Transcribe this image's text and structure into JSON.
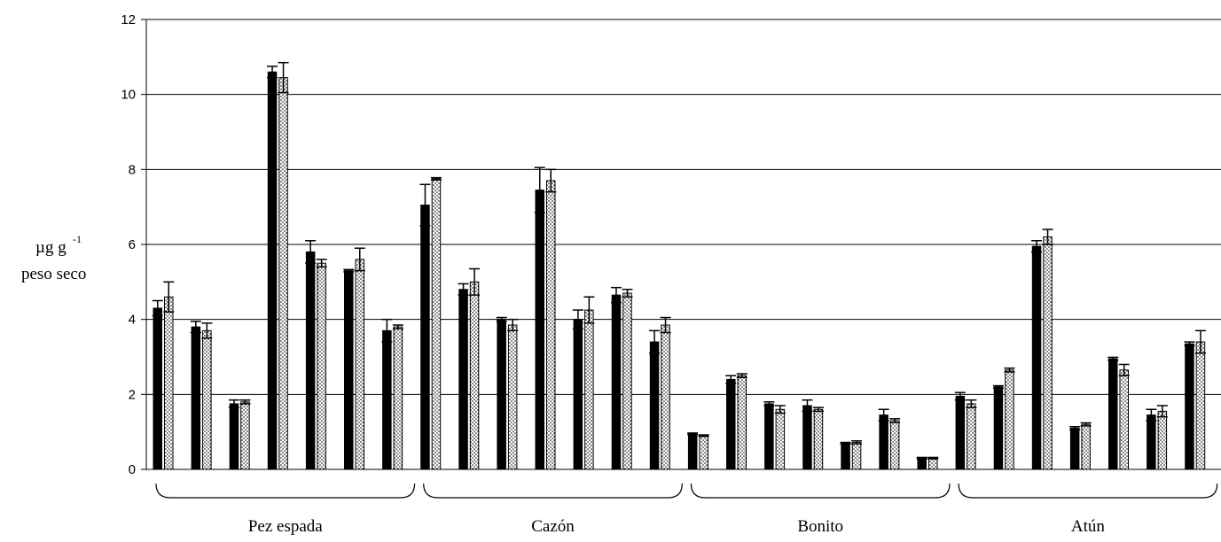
{
  "chart_data": {
    "type": "bar",
    "ylabel_main": "µg g",
    "ylabel_sup": "-1",
    "ylabel_line2": "peso seco",
    "ylim": [
      0,
      12
    ],
    "yticks": [
      "0",
      "2",
      "4",
      "6",
      "8",
      "10",
      "12"
    ],
    "grid": true,
    "groups": [
      {
        "label": "Pez espada",
        "samples": 7
      },
      {
        "label": "Cazón",
        "samples": 7
      },
      {
        "label": "Bonito",
        "samples": 7
      },
      {
        "label": "Atún",
        "samples": 7
      }
    ],
    "series": [
      {
        "values": [
          4.3,
          3.8,
          1.75,
          10.6,
          5.8,
          5.3,
          3.7,
          7.05,
          4.8,
          4.0,
          7.45,
          4.0,
          4.65,
          3.4,
          0.95,
          2.4,
          1.75,
          1.7,
          0.7,
          1.45,
          0.3,
          1.95,
          2.2,
          5.95,
          1.1,
          2.95,
          1.45,
          3.35
        ],
        "errors": [
          0.2,
          0.15,
          0.1,
          0.15,
          0.3,
          0.03,
          0.3,
          0.55,
          0.15,
          0.05,
          0.6,
          0.25,
          0.2,
          0.3,
          0.02,
          0.1,
          0.05,
          0.15,
          0.02,
          0.15,
          0.02,
          0.1,
          0.03,
          0.15,
          0.04,
          0.04,
          0.15,
          0.05
        ],
        "color": "#000000",
        "pattern": "solid"
      },
      {
        "values": [
          4.6,
          3.7,
          1.8,
          10.45,
          5.5,
          5.6,
          3.8,
          7.75,
          5.0,
          3.85,
          7.7,
          4.25,
          4.7,
          3.85,
          0.9,
          2.5,
          1.6,
          1.6,
          0.72,
          1.3,
          0.3,
          1.75,
          2.65,
          6.2,
          1.2,
          2.65,
          1.55,
          3.4
        ],
        "errors": [
          0.4,
          0.2,
          0.05,
          0.4,
          0.1,
          0.3,
          0.05,
          0.03,
          0.35,
          0.15,
          0.3,
          0.35,
          0.1,
          0.2,
          0.02,
          0.05,
          0.1,
          0.05,
          0.04,
          0.05,
          0.02,
          0.1,
          0.05,
          0.2,
          0.04,
          0.15,
          0.15,
          0.3
        ],
        "color": "#ffffff",
        "pattern": "dotted"
      }
    ]
  }
}
